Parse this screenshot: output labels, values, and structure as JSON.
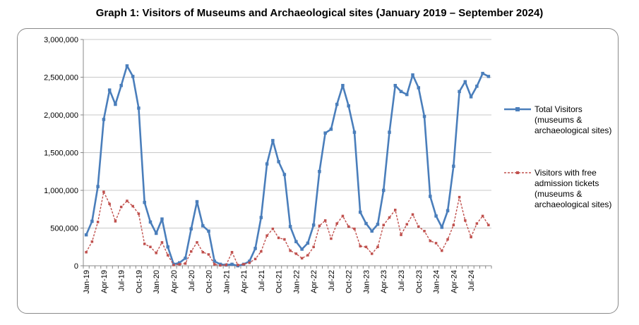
{
  "chart_data": {
    "type": "line",
    "title": "Graph 1: Visitors of Museums and Archaeological sites (January 2019 – September 2024)",
    "xlabel": "",
    "ylabel": "",
    "ylim": [
      0,
      3000000
    ],
    "yticks": [
      0,
      500000,
      1000000,
      1500000,
      2000000,
      2500000,
      3000000
    ],
    "ytick_labels": [
      "0",
      "500,000",
      "1,000,000",
      "1,500,000",
      "2,000,000",
      "2,500,000",
      "3,000,000"
    ],
    "x_tick_labels": [
      "Jan-19",
      "Apr-19",
      "Jul-19",
      "Oct-19",
      "Jan-20",
      "Apr-20",
      "Jul-20",
      "Oct-20",
      "Jan-21",
      "Apr-21",
      "Jul-21",
      "Oct-21",
      "Jan-22",
      "Apr-22",
      "Jul-22",
      "Oct-22",
      "Jan-23",
      "Apr-23",
      "Jul-23",
      "Oct-23",
      "Jan-24",
      "Apr-24",
      "Jul-24"
    ],
    "grid": "horizontal",
    "legend_position": "right",
    "series": [
      {
        "name": "Total Visitors (museums & archaeological sites)",
        "color": "#4a7ebb",
        "style": "solid",
        "values": [
          410000,
          590000,
          1050000,
          1940000,
          2330000,
          2140000,
          2390000,
          2650000,
          2510000,
          2090000,
          840000,
          580000,
          430000,
          620000,
          250000,
          20000,
          40000,
          100000,
          490000,
          850000,
          530000,
          460000,
          60000,
          20000,
          10000,
          20000,
          0,
          20000,
          60000,
          230000,
          640000,
          1350000,
          1660000,
          1380000,
          1210000,
          520000,
          320000,
          220000,
          300000,
          540000,
          1250000,
          1760000,
          1810000,
          2140000,
          2390000,
          2120000,
          1770000,
          710000,
          560000,
          460000,
          550000,
          1000000,
          1770000,
          2390000,
          2310000,
          2270000,
          2530000,
          2360000,
          1980000,
          920000,
          660000,
          510000,
          730000,
          1320000,
          2310000,
          2440000,
          2240000,
          2380000,
          2550000,
          2510000
        ]
      },
      {
        "name": "Visitors with free admission tickets (museums & archaeological sites)",
        "color": "#c0504d",
        "style": "dashed",
        "values": [
          180000,
          320000,
          580000,
          980000,
          820000,
          590000,
          780000,
          860000,
          790000,
          690000,
          290000,
          250000,
          170000,
          310000,
          140000,
          10000,
          20000,
          30000,
          190000,
          310000,
          180000,
          150000,
          20000,
          5000,
          10000,
          180000,
          10000,
          20000,
          40000,
          90000,
          190000,
          400000,
          490000,
          370000,
          350000,
          200000,
          160000,
          100000,
          140000,
          250000,
          530000,
          600000,
          360000,
          560000,
          660000,
          520000,
          490000,
          260000,
          250000,
          160000,
          250000,
          540000,
          640000,
          740000,
          410000,
          550000,
          680000,
          520000,
          460000,
          330000,
          300000,
          200000,
          350000,
          540000,
          910000,
          600000,
          380000,
          560000,
          660000,
          540000
        ]
      }
    ]
  }
}
